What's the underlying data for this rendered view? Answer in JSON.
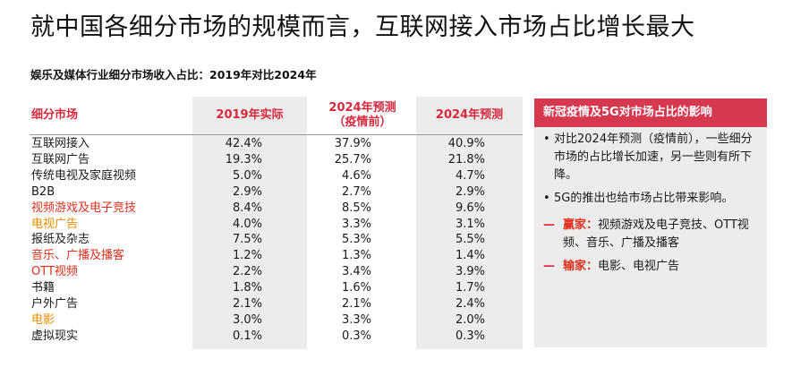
{
  "title": "就中国各细分市场的规模而言，互联网接入市场占比增长最大",
  "subtitle": "娱乐及媒体行业细分市场收入占比：2019年对比2024年",
  "table": {
    "headers": {
      "segment": "细分市场",
      "actual_2019": "2019年实际",
      "forecast_pre_line1": "2024年预测",
      "forecast_pre_line2": "（疫情前）",
      "forecast_2024": "2024年预测"
    },
    "rows": [
      {
        "name": "互联网接入",
        "a": "42.4%",
        "b": "37.9%",
        "c": "40.9%",
        "color": "dark"
      },
      {
        "name": "互联网广告",
        "a": "19.3%",
        "b": "25.7%",
        "c": "21.8%",
        "color": "dark"
      },
      {
        "name": "传统电视及家庭视频",
        "a": "5.0%",
        "b": "4.6%",
        "c": "4.7%",
        "color": "dark"
      },
      {
        "name": "B2B",
        "a": "2.9%",
        "b": "2.7%",
        "c": "2.9%",
        "color": "dark"
      },
      {
        "name": "视频游戏及电子竞技",
        "a": "8.4%",
        "b": "8.5%",
        "c": "9.6%",
        "color": "red"
      },
      {
        "name": "电视广告",
        "a": "4.0%",
        "b": "3.3%",
        "c": "3.1%",
        "color": "orange"
      },
      {
        "name": "报纸及杂志",
        "a": "7.5%",
        "b": "5.3%",
        "c": "5.5%",
        "color": "dark"
      },
      {
        "name": "音乐、广播及播客",
        "a": "1.2%",
        "b": "1.3%",
        "c": "1.4%",
        "color": "red"
      },
      {
        "name": "OTT视频",
        "a": "2.2%",
        "b": "3.4%",
        "c": "3.9%",
        "color": "red"
      },
      {
        "name": "书籍",
        "a": "1.8%",
        "b": "1.6%",
        "c": "1.7%",
        "color": "dark"
      },
      {
        "name": "户外广告",
        "a": "2.1%",
        "b": "2.1%",
        "c": "2.4%",
        "color": "dark"
      },
      {
        "name": "电影",
        "a": "3.0%",
        "b": "3.3%",
        "c": "2.0%",
        "color": "orange"
      },
      {
        "name": "虚拟现实",
        "a": "0.1%",
        "b": "0.3%",
        "c": "0.3%",
        "color": "dark"
      }
    ]
  },
  "side": {
    "heading": "新冠疫情及5G对市场占比的影响",
    "bullet1": "对比2024年预测（疫情前），一些细分市场的占比增长加速，另一些则有所下降。",
    "bullet2": "5G的推出也给市场占比带来影响。",
    "winners_label": "赢家：",
    "winners_text": "视频游戏及电子竞技、OTT视频、音乐、广播及播客",
    "losers_label": "输家：",
    "losers_text": "电影、电视广告",
    "bullet_glyph": "•",
    "dash_glyph": "—"
  },
  "colors": {
    "accent": "#d6384f",
    "red_text": "#e0301e",
    "orange_text": "#eb8c00",
    "shade": "#ececec"
  }
}
